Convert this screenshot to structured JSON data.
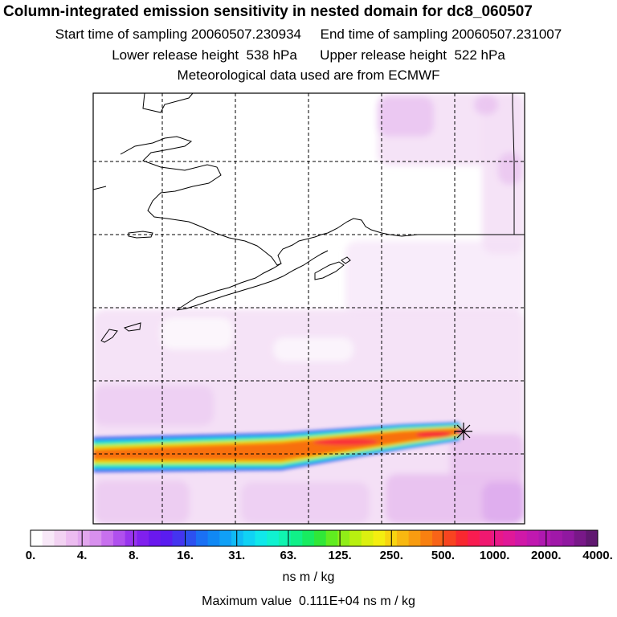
{
  "header": {
    "title": "Column-integrated emission sensitivity in nested domain for dc8_060507",
    "start_label": "Start time of sampling 20060507.230934",
    "end_label": "End time of sampling 20060507.231007",
    "lower_label": "Lower release height  538 hPa",
    "upper_label": "Upper release height  522 hPa",
    "met_label": "Meteorological data used are from ECMWF"
  },
  "colorbar": {
    "tick_labels": [
      "0.",
      "4.",
      "8.",
      "16.",
      "31.",
      "63.",
      "125.",
      "250.",
      "500.",
      "1000.",
      "2000.",
      "4000."
    ],
    "colors": [
      "#ffffff",
      "#f8e8f8",
      "#f2d2f2",
      "#ecbcf0",
      "#e2a6ee",
      "#d890ee",
      "#c870ee",
      "#b050ee",
      "#9834ee",
      "#8020ee",
      "#6a18ee",
      "#5a1cf0",
      "#4434f0",
      "#2c50f0",
      "#1a70f4",
      "#1088f4",
      "#10a0f6",
      "#10baf6",
      "#10d2f4",
      "#10e8ea",
      "#10f2d0",
      "#10f4b0",
      "#10f088",
      "#18ec60",
      "#30e838",
      "#60ec20",
      "#90ee18",
      "#b8f010",
      "#dcf010",
      "#f4ee10",
      "#f8d410",
      "#f8b810",
      "#f89c10",
      "#f88010",
      "#f86418",
      "#f84420",
      "#f82830",
      "#f81c50",
      "#f01870",
      "#e81888",
      "#e01898",
      "#d018a8",
      "#c018b0",
      "#b018b0",
      "#a018a8",
      "#9018a0",
      "#781888",
      "#601870"
    ],
    "unit": "ns m / kg"
  },
  "footer": {
    "max_label": "Maximum value  0.111E+04 ns m / kg"
  },
  "map": {
    "source_marker": "asterisk-icon",
    "background_colors": {
      "light": "#f4e0f6",
      "medium": "#e8c0f0",
      "dark": "#d8a0ec"
    },
    "plume_colors": [
      "#4860f0",
      "#10c8f4",
      "#10f0a0",
      "#c8f010",
      "#f8c010",
      "#f87010",
      "#f82840",
      "#e01890"
    ]
  }
}
